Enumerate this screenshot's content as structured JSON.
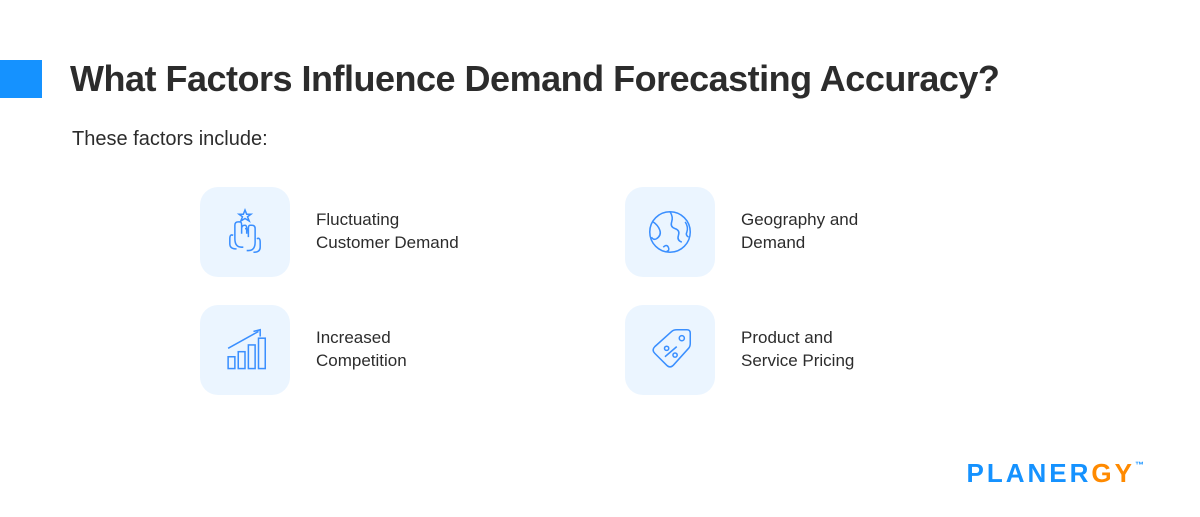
{
  "accent_color": "#1592ff",
  "icon_bg_color": "#ebf5ff",
  "icon_stroke_color": "#3a8fff",
  "text_color": "#2c2c2c",
  "background_color": "#ffffff",
  "title": "What Factors Influence Demand Forecasting Accuracy?",
  "title_fontsize": 36,
  "subtitle": "These factors include:",
  "subtitle_fontsize": 20,
  "label_fontsize": 17,
  "icon_box_size": 90,
  "icon_box_radius": 18,
  "grid": {
    "columns": 2,
    "rows": 2
  },
  "factors": [
    {
      "icon": "hands-star-icon",
      "label": "Fluctuating\nCustomer Demand"
    },
    {
      "icon": "globe-icon",
      "label": "Geography and\nDemand"
    },
    {
      "icon": "bar-growth-icon",
      "label": "Increased\nCompetition"
    },
    {
      "icon": "price-tag-icon",
      "label": "Product and\nService Pricing"
    }
  ],
  "brand": {
    "name": "PLANERGY",
    "tm": "™",
    "color_primary": "#1592ff",
    "color_accent": "#ff8a00",
    "fontsize": 26
  }
}
